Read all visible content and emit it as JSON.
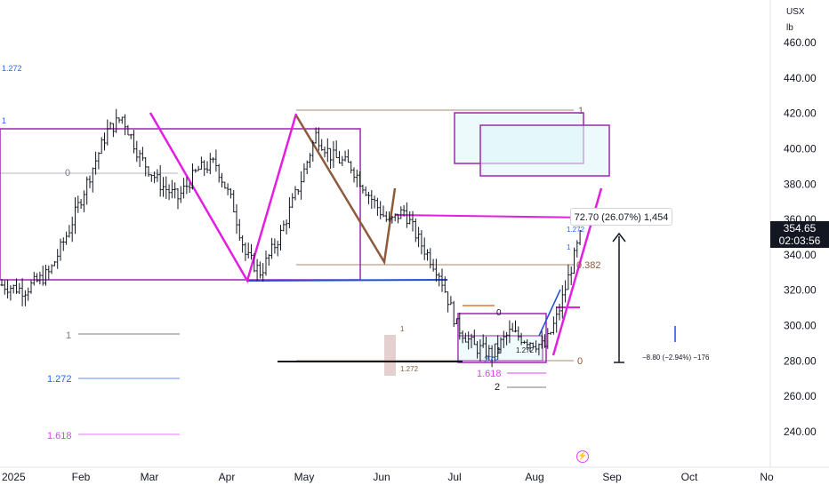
{
  "axis": {
    "currency": "USX",
    "unit": "lb",
    "price_ticks": [
      "460.00",
      "440.00",
      "420.00",
      "400.00",
      "380.00",
      "360.00",
      "340.00",
      "320.00",
      "300.00",
      "280.00",
      "260.00",
      "240.00"
    ],
    "time_ticks": [
      "2025",
      "Feb",
      "Mar",
      "Apr",
      "May",
      "Jun",
      "Jul",
      "Aug",
      "Sep",
      "Oct",
      "No"
    ]
  },
  "last_price": {
    "value": "354.65",
    "countdown": "02:03:56"
  },
  "measure": {
    "upper_label": "72.70 (26.07%) 1,454",
    "lower_label": "−8.80 (−2.94%) −176"
  },
  "fib_labels": {
    "left_top_1272": "1.272",
    "left_top_1": "1",
    "left_top_0": "0",
    "left_bottom_1": "1",
    "left_bottom_1272": "1.272",
    "left_bottom_1618": "1.618",
    "mid_1": "1",
    "mid_1272": "1.272",
    "right_top_1": "1",
    "right_0382": "0.382",
    "right_0": "0",
    "lower_272": "272",
    "lower_1618": "1.618",
    "lower_2": "2",
    "lower_1": "1",
    "lower_0": "0",
    "lower_1272": "1.272",
    "small_1272": "1.272",
    "small_1": "1"
  },
  "colors": {
    "magenta": "#e31ee3",
    "purple": "#9c27b0",
    "brown": "#8d5a3b",
    "blue": "#1e4fd6",
    "candle": "#131722",
    "fib_blue": "#2962ff",
    "fib_pink": "#e040fb"
  },
  "chart_data": {
    "type": "candlestick",
    "instrument_unit": "USX / lb",
    "y_axis": {
      "ylim": [
        232,
        472
      ],
      "ticks": [
        240,
        260,
        280,
        300,
        320,
        340,
        360,
        380,
        400,
        420,
        440,
        460
      ]
    },
    "x_axis": {
      "ticks": [
        "2025",
        "Feb",
        "Mar",
        "Apr",
        "May",
        "Jun",
        "Jul",
        "Aug",
        "Sep",
        "Oct",
        "No"
      ]
    },
    "last_close": 354.65,
    "close_path": [
      [
        "2025-01-01",
        323
      ],
      [
        "2025-01-10",
        320
      ],
      [
        "2025-01-20",
        330
      ],
      [
        "2025-01-28",
        355
      ],
      [
        "2025-02-05",
        385
      ],
      [
        "2025-02-12",
        410
      ],
      [
        "2025-02-18",
        418
      ],
      [
        "2025-02-25",
        395
      ],
      [
        "2025-03-05",
        380
      ],
      [
        "2025-03-12",
        372
      ],
      [
        "2025-03-20",
        388
      ],
      [
        "2025-03-27",
        392
      ],
      [
        "2025-04-03",
        368
      ],
      [
        "2025-04-08",
        340
      ],
      [
        "2025-04-14",
        330
      ],
      [
        "2025-04-22",
        352
      ],
      [
        "2025-04-30",
        382
      ],
      [
        "2025-05-06",
        408
      ],
      [
        "2025-05-12",
        396
      ],
      [
        "2025-05-20",
        390
      ],
      [
        "2025-05-28",
        372
      ],
      [
        "2025-06-04",
        358
      ],
      [
        "2025-06-10",
        365
      ],
      [
        "2025-06-16",
        348
      ],
      [
        "2025-06-24",
        330
      ],
      [
        "2025-07-01",
        300
      ],
      [
        "2025-07-08",
        288
      ],
      [
        "2025-07-15",
        284
      ],
      [
        "2025-07-22",
        296
      ],
      [
        "2025-07-29",
        292
      ],
      [
        "2025-08-05",
        288
      ],
      [
        "2025-08-10",
        305
      ],
      [
        "2025-08-15",
        330
      ],
      [
        "2025-08-20",
        354.65
      ]
    ]
  }
}
